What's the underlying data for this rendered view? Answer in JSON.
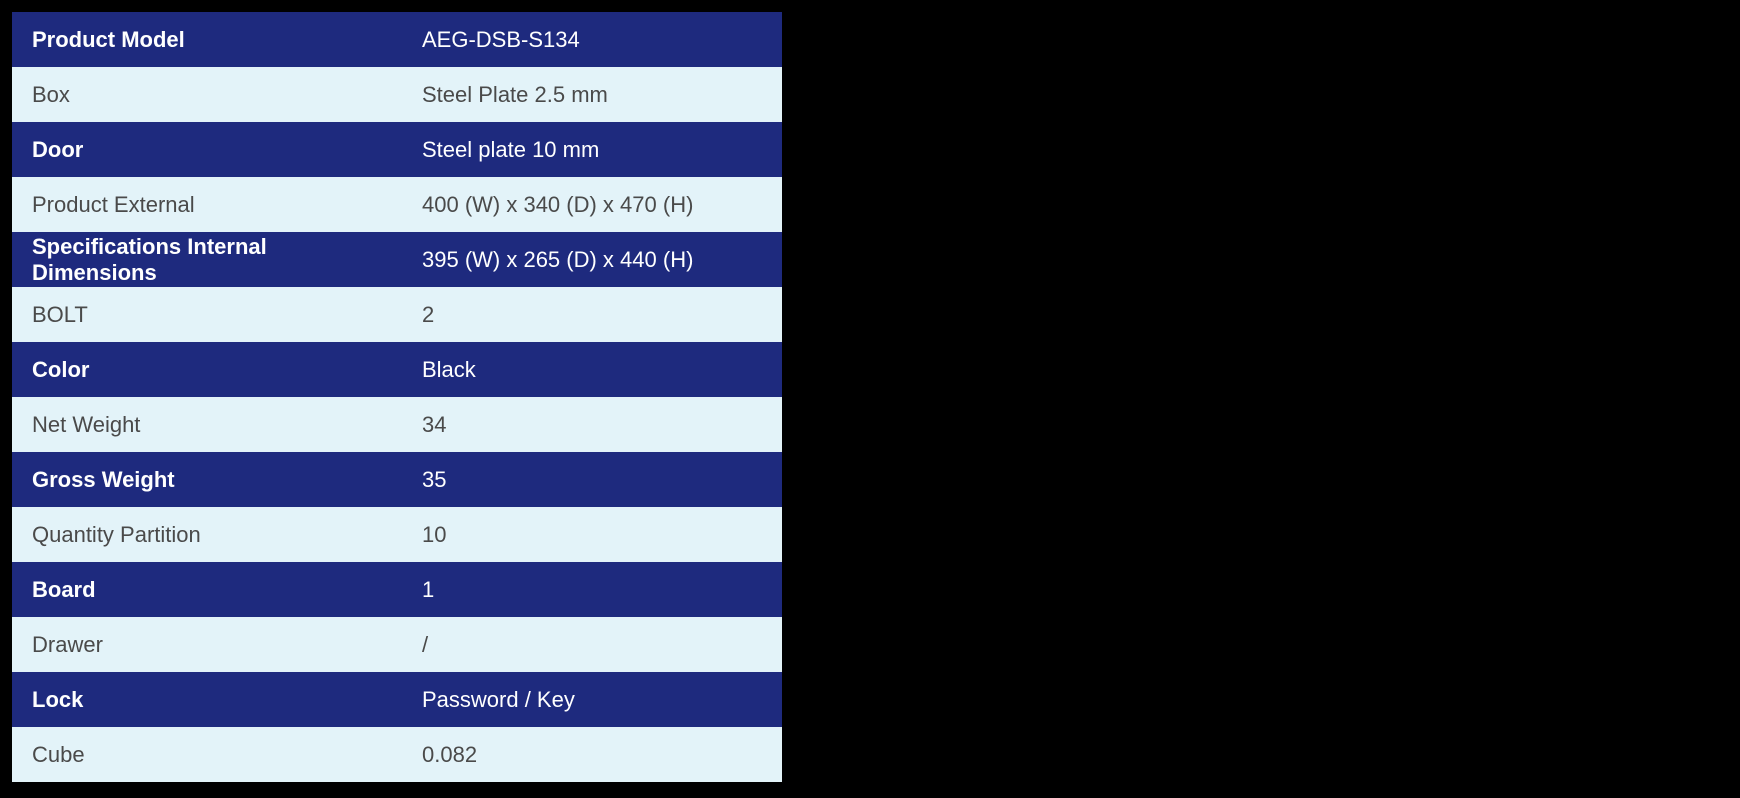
{
  "spec_table": {
    "type": "table",
    "colors": {
      "row_dark_bg": "#1e2a7e",
      "row_light_bg": "#e3f3f9",
      "dark_label_text": "#ffffff",
      "dark_value_text": "#ffffff",
      "light_text": "#4a4a4a",
      "page_bg": "#000000"
    },
    "font_size": 22,
    "rows": [
      {
        "label": "Product Model",
        "value": "AEG-DSB-S134",
        "variant": "dark"
      },
      {
        "label": "Box",
        "value": "Steel Plate 2.5 mm",
        "variant": "light"
      },
      {
        "label": "Door",
        "value": "Steel plate 10 mm",
        "variant": "dark"
      },
      {
        "label": "Product External",
        "value": "400 (W) x 340 (D) x 470 (H)",
        "variant": "light"
      },
      {
        "label": "Specifications Internal Dimensions",
        "value": "395 (W) x 265 (D) x 440 (H)",
        "variant": "dark"
      },
      {
        "label": "BOLT",
        "value": "2",
        "variant": "light"
      },
      {
        "label": "Color",
        "value": "Black",
        "variant": "dark"
      },
      {
        "label": "Net Weight",
        "value": "34",
        "variant": "light"
      },
      {
        "label": "Gross Weight",
        "value": "35",
        "variant": "dark"
      },
      {
        "label": "Quantity Partition",
        "value": "10",
        "variant": "light"
      },
      {
        "label": "Board",
        "value": "1",
        "variant": "dark"
      },
      {
        "label": "Drawer",
        "value": " /",
        "variant": "light"
      },
      {
        "label": "Lock",
        "value": "Password / Key",
        "variant": "dark"
      },
      {
        "label": "Cube",
        "value": "0.082",
        "variant": "light"
      }
    ]
  }
}
